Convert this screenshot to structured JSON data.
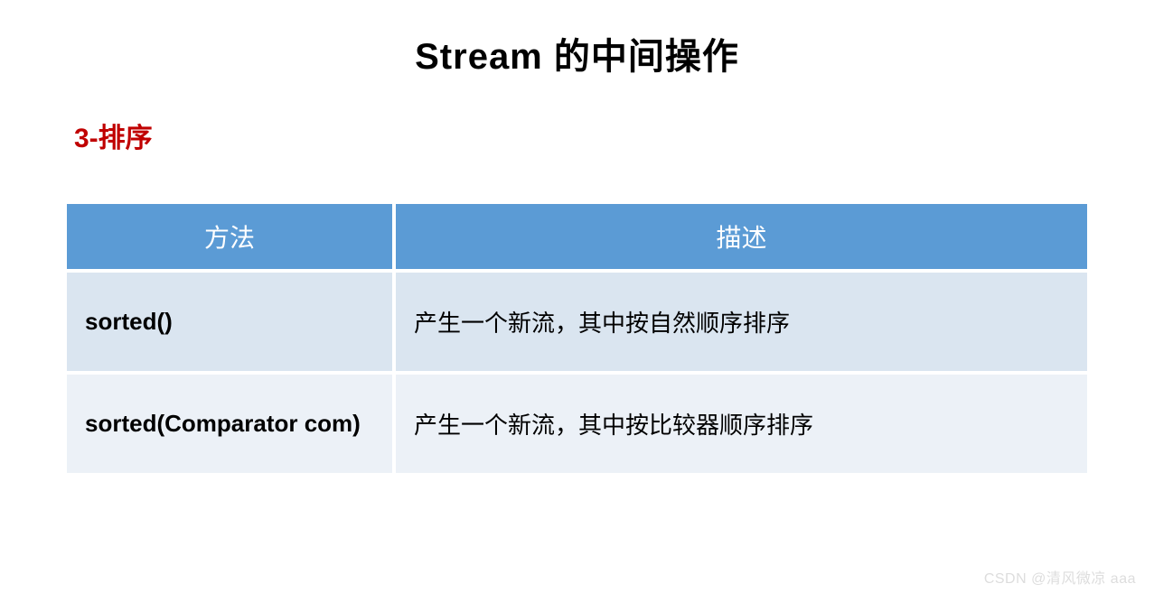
{
  "title": "Stream 的中间操作",
  "subtitle": "3-排序",
  "table": {
    "columns": [
      "方法",
      "描述"
    ],
    "rows": [
      {
        "method": "sorted()",
        "desc": "产生一个新流，其中按自然顺序排序"
      },
      {
        "method": "sorted(Comparator com)",
        "desc": "产生一个新流，其中按比较器顺序排序"
      }
    ],
    "header_bg": "#5b9bd5",
    "header_color": "#ffffff",
    "row_odd_bg": "#dae5f0",
    "row_even_bg": "#ecf1f7",
    "col_widths": [
      "32%",
      "68%"
    ],
    "header_fontsize": 28,
    "cell_fontsize": 26
  },
  "watermark": "CSDN @清风微凉 aaa",
  "colors": {
    "title": "#000000",
    "subtitle": "#c00000",
    "background": "#ffffff",
    "watermark": "#dddddd"
  }
}
